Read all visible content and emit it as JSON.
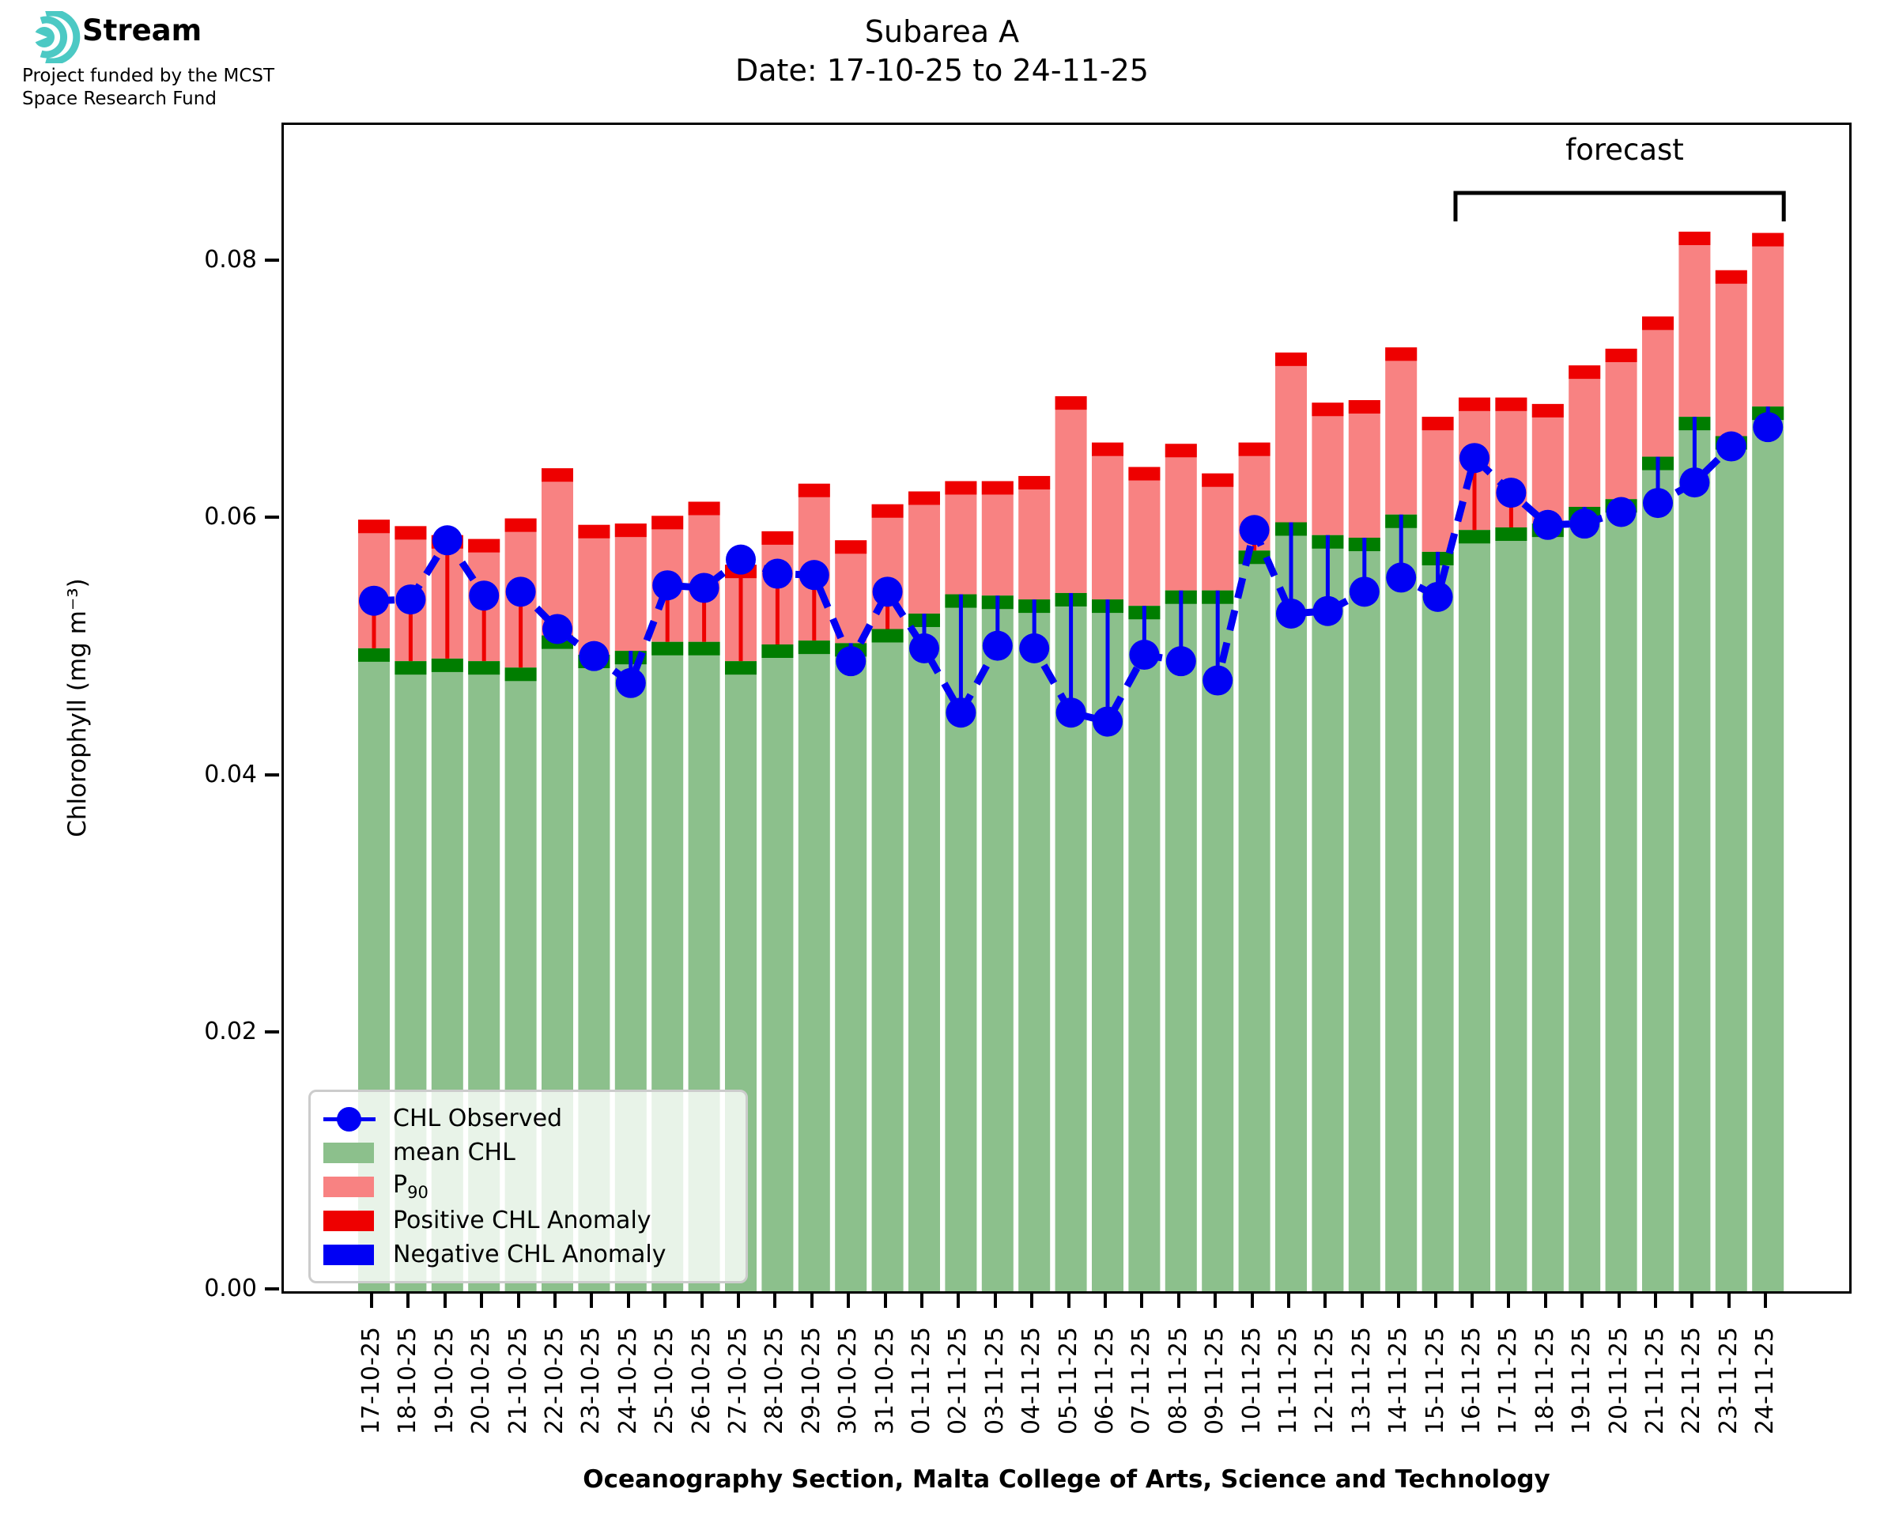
{
  "logo": {
    "brand": "Stream",
    "sub1": "Project funded by the MCST",
    "sub2": "Space Research Fund",
    "teal": "#4cc9c4"
  },
  "title": {
    "line1": "Subarea A",
    "line2": "Date: 17-10-25 to 24-11-25"
  },
  "forecast_label": "forecast",
  "legend": {
    "observed": "CHL Observed",
    "mean": "mean CHL",
    "p90_main": "P",
    "p90_sub": "90",
    "positive": "Positive CHL Anomaly",
    "negative": "Negative CHL Anomaly"
  },
  "colors": {
    "mean_fill": "#8cc08c",
    "mean_cap": "#007d00",
    "p90_fill": "#f88282",
    "p90_cap": "#ee0000",
    "observed": "#0000f4",
    "positive_anomaly": "#ee0000",
    "negative_anomaly": "#0000f4",
    "axis": "#000000"
  },
  "chart_data": {
    "type": "bar",
    "title": "Subarea A",
    "subtitle": "Date: 17-10-25 to 24-11-25",
    "xlabel": "Oceanography Section, Malta College of Arts, Science and Technology",
    "ylabel": "Chlorophyll (mg m⁻³)",
    "ylim": [
      0,
      0.0907
    ],
    "yticks": [
      0,
      0.02,
      0.04,
      0.06,
      0.08
    ],
    "ytick_labels": [
      "0.00",
      "0.02",
      "0.04",
      "0.06",
      "0.08"
    ],
    "grid": false,
    "legend_position": "lower left",
    "forecast_start_category": "16-11-25",
    "categories": [
      "17-10-25",
      "18-10-25",
      "19-10-25",
      "20-10-25",
      "21-10-25",
      "22-10-25",
      "23-10-25",
      "24-10-25",
      "25-10-25",
      "26-10-25",
      "27-10-25",
      "28-10-25",
      "29-10-25",
      "30-10-25",
      "31-10-25",
      "01-11-25",
      "02-11-25",
      "03-11-25",
      "04-11-25",
      "05-11-25",
      "06-11-25",
      "07-11-25",
      "08-11-25",
      "09-11-25",
      "10-11-25",
      "11-11-25",
      "12-11-25",
      "13-11-25",
      "14-11-25",
      "15-11-25",
      "16-11-25",
      "17-11-25",
      "18-11-25",
      "19-11-25",
      "20-11-25",
      "21-11-25",
      "22-11-25",
      "23-11-25",
      "24-11-25"
    ],
    "series": [
      {
        "name": "mean CHL",
        "values": [
          0.05,
          0.049,
          0.0492,
          0.049,
          0.0485,
          0.051,
          0.0495,
          0.0498,
          0.0505,
          0.0505,
          0.049,
          0.0503,
          0.0506,
          0.0504,
          0.0515,
          0.0527,
          0.0542,
          0.0541,
          0.0538,
          0.0543,
          0.0538,
          0.0533,
          0.0545,
          0.0545,
          0.0576,
          0.0598,
          0.0588,
          0.0586,
          0.0604,
          0.0575,
          0.0592,
          0.0594,
          0.0597,
          0.061,
          0.0616,
          0.0649,
          0.068,
          0.0665,
          0.0688
        ]
      },
      {
        "name": "P90",
        "values": [
          0.06,
          0.0595,
          0.0588,
          0.0585,
          0.0601,
          0.064,
          0.0596,
          0.0597,
          0.0603,
          0.0614,
          0.0565,
          0.0591,
          0.0628,
          0.0584,
          0.0612,
          0.0622,
          0.063,
          0.063,
          0.0634,
          0.0696,
          0.066,
          0.0641,
          0.0659,
          0.0636,
          0.066,
          0.073,
          0.0691,
          0.0693,
          0.0734,
          0.068,
          0.0695,
          0.0695,
          0.069,
          0.072,
          0.0733,
          0.0758,
          0.0824,
          0.0794,
          0.0823
        ]
      },
      {
        "name": "CHL Observed",
        "values": [
          0.0537,
          0.0538,
          0.0584,
          0.0541,
          0.0544,
          0.0515,
          0.0494,
          0.0473,
          0.0549,
          0.0547,
          0.0569,
          0.0558,
          0.0557,
          0.049,
          0.0544,
          0.05,
          0.045,
          0.0502,
          0.05,
          0.045,
          0.0443,
          0.0495,
          0.049,
          0.0475,
          0.0592,
          0.0527,
          0.0529,
          0.0544,
          0.0555,
          0.054,
          0.0648,
          0.0621,
          0.0596,
          0.0597,
          0.0606,
          0.0613,
          0.0629,
          0.0657,
          0.0672
        ]
      }
    ]
  }
}
